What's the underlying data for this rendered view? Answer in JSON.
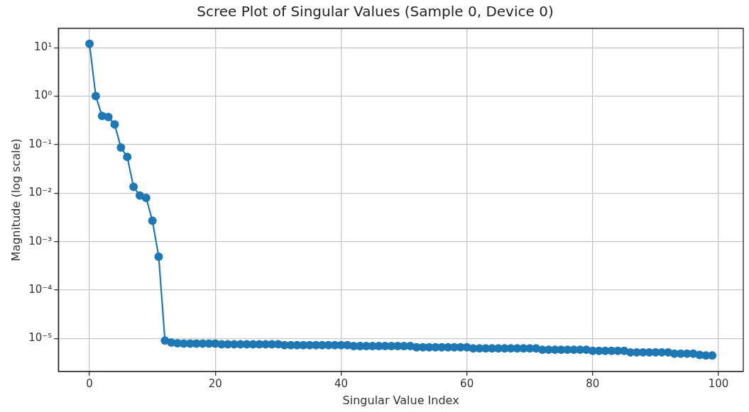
{
  "chart_data": {
    "type": "line",
    "title": "Scree Plot of Singular Values (Sample 0, Device 0)",
    "xlabel": "Singular Value Index",
    "ylabel": "Magnitude (log scale)",
    "x": [
      0,
      1,
      2,
      3,
      4,
      5,
      6,
      7,
      8,
      9,
      10,
      11,
      12,
      13,
      14,
      15,
      16,
      17,
      18,
      19,
      20,
      21,
      22,
      23,
      24,
      25,
      26,
      27,
      28,
      29,
      30,
      31,
      32,
      33,
      34,
      35,
      36,
      37,
      38,
      39,
      40,
      41,
      42,
      43,
      44,
      45,
      46,
      47,
      48,
      49,
      50,
      51,
      52,
      53,
      54,
      55,
      56,
      57,
      58,
      59,
      60,
      61,
      62,
      63,
      64,
      65,
      66,
      67,
      68,
      69,
      70,
      71,
      72,
      73,
      74,
      75,
      76,
      77,
      78,
      79,
      80,
      81,
      82,
      83,
      84,
      85,
      86,
      87,
      88,
      89,
      90,
      91,
      92,
      93,
      94,
      95,
      96,
      97,
      98,
      99
    ],
    "series": [
      {
        "color": "#1f77b4",
        "values": [
          12,
          1.0,
          0.39,
          0.37,
          0.26,
          0.087,
          0.056,
          0.0135,
          0.0089,
          0.008,
          0.0027,
          0.00049,
          9.1e-06,
          8.3e-06,
          8e-06,
          7.9e-06,
          7.9e-06,
          7.9e-06,
          7.9e-06,
          7.9e-06,
          7.9e-06,
          7.6e-06,
          7.6e-06,
          7.6e-06,
          7.6e-06,
          7.6e-06,
          7.6e-06,
          7.6e-06,
          7.6e-06,
          7.6e-06,
          7.6e-06,
          7.3e-06,
          7.3e-06,
          7.3e-06,
          7.3e-06,
          7.3e-06,
          7.3e-06,
          7.3e-06,
          7.3e-06,
          7.3e-06,
          7.3e-06,
          7.3e-06,
          7e-06,
          7e-06,
          7e-06,
          7e-06,
          7e-06,
          7e-06,
          7e-06,
          7e-06,
          7e-06,
          7e-06,
          6.6e-06,
          6.6e-06,
          6.6e-06,
          6.6e-06,
          6.6e-06,
          6.6e-06,
          6.6e-06,
          6.6e-06,
          6.6e-06,
          6.3e-06,
          6.3e-06,
          6.3e-06,
          6.3e-06,
          6.3e-06,
          6.3e-06,
          6.3e-06,
          6.3e-06,
          6.3e-06,
          6.3e-06,
          6.3e-06,
          5.9e-06,
          5.9e-06,
          5.9e-06,
          5.9e-06,
          5.9e-06,
          5.9e-06,
          5.9e-06,
          5.9e-06,
          5.6e-06,
          5.6e-06,
          5.6e-06,
          5.6e-06,
          5.6e-06,
          5.6e-06,
          5.2e-06,
          5.2e-06,
          5.2e-06,
          5.2e-06,
          5.2e-06,
          5.2e-06,
          5.2e-06,
          4.9e-06,
          4.9e-06,
          4.9e-06,
          4.9e-06,
          4.6e-06,
          4.5e-06,
          4.5e-06
        ]
      }
    ],
    "xlim": [
      -4.95,
      103.95
    ],
    "xticks": [
      0,
      20,
      40,
      60,
      80,
      100
    ],
    "ylim": [
      2.1e-06,
      25
    ],
    "yticks": [
      {
        "value": 10,
        "label": "10¹"
      },
      {
        "value": 1,
        "label": "10⁰"
      },
      {
        "value": 0.1,
        "label": "10⁻¹"
      },
      {
        "value": 0.01,
        "label": "10⁻²"
      },
      {
        "value": 0.001,
        "label": "10⁻³"
      },
      {
        "value": 0.0001,
        "label": "10⁻⁴"
      },
      {
        "value": 1e-05,
        "label": "10⁻⁵"
      }
    ],
    "log": "y",
    "grid": true,
    "legend": false,
    "marker": "circle",
    "line_style": "solid"
  }
}
